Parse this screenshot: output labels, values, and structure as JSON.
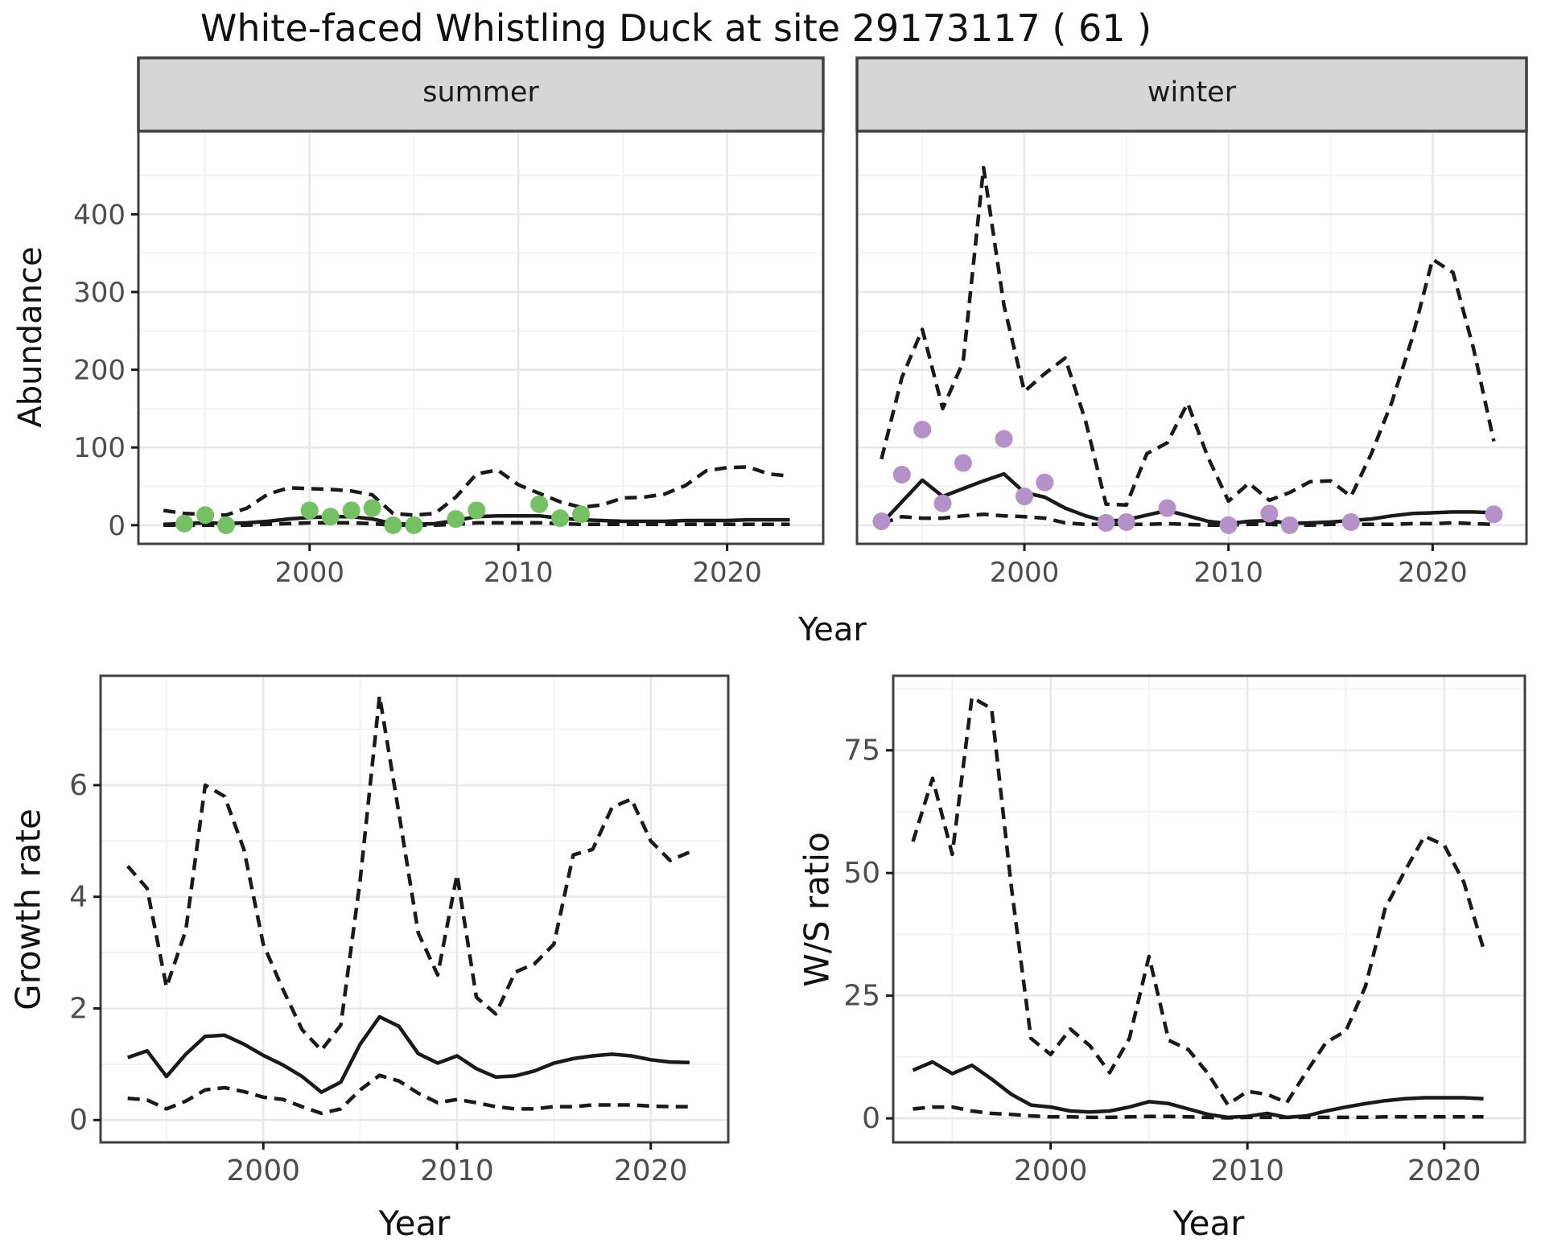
{
  "title": "White-faced Whistling Duck at site 29173117 ( 61 )",
  "colors": {
    "summer_points": "#74c163",
    "winter_points": "#b491c8",
    "line": "#1a1a1a",
    "strip_bg": "#d6d6d6",
    "panel_border": "#404040",
    "grid_major": "#e8e8e8",
    "grid_minor": "#f3f3f3",
    "tick_text": "#4d4d4d"
  },
  "chart_data": [
    {
      "type": "line",
      "id": "summer",
      "facet": "summer",
      "xlabel": "Year",
      "ylabel": "Abundance",
      "xlim": [
        1991.8,
        2024.6
      ],
      "ylim": [
        -24,
        507
      ],
      "xticks": [
        2000,
        2010,
        2020
      ],
      "xminor": [
        1995,
        2005,
        2015
      ],
      "yticks": [
        0,
        100,
        200,
        300,
        400
      ],
      "yminor": [
        50,
        150,
        250,
        350,
        450
      ],
      "grid": true,
      "legend": "none",
      "series": [
        {
          "name": "upper-ci",
          "style": "dashed",
          "x": [
            1993,
            1994,
            1995,
            1996,
            1997,
            1998,
            1999,
            2000,
            2001,
            2002,
            2003,
            2004,
            2005,
            2006,
            2007,
            2008,
            2009,
            2010,
            2011,
            2012,
            2013,
            2014,
            2015,
            2016,
            2017,
            2018,
            2019,
            2020,
            2021,
            2022,
            2023
          ],
          "y": [
            19,
            15,
            14,
            13,
            22,
            40,
            48,
            47,
            46,
            44,
            39,
            15,
            13,
            15,
            36,
            66,
            71,
            52,
            41,
            30,
            23,
            26,
            35,
            36,
            40,
            51,
            70,
            74,
            75,
            66,
            63
          ]
        },
        {
          "name": "lower-ci",
          "style": "dashed",
          "x": [
            1993,
            1994,
            1995,
            1996,
            1997,
            1998,
            1999,
            2000,
            2001,
            2002,
            2003,
            2004,
            2005,
            2006,
            2007,
            2008,
            2009,
            2010,
            2011,
            2012,
            2013,
            2014,
            2015,
            2016,
            2017,
            2018,
            2019,
            2020,
            2021,
            2022,
            2023
          ],
          "y": [
            0,
            0,
            0,
            0,
            0,
            1,
            2,
            3,
            3,
            3,
            2,
            0,
            0,
            0,
            1,
            3,
            3,
            3,
            3,
            2,
            1,
            1,
            1,
            1,
            1,
            1,
            1,
            1,
            1,
            1,
            1
          ]
        },
        {
          "name": "mean",
          "style": "solid",
          "x": [
            1993,
            1994,
            1995,
            1996,
            1997,
            1998,
            1999,
            2000,
            2001,
            2002,
            2003,
            2004,
            2005,
            2006,
            2007,
            2008,
            2009,
            2010,
            2011,
            2012,
            2013,
            2014,
            2015,
            2016,
            2017,
            2018,
            2019,
            2020,
            2021,
            2022,
            2023
          ],
          "y": [
            1,
            2,
            3,
            2,
            3,
            5,
            8,
            10,
            11,
            11,
            8,
            2,
            1,
            2,
            6,
            11,
            12,
            12,
            12,
            9,
            7,
            6,
            5,
            5,
            5,
            6,
            6,
            6,
            7,
            7,
            7
          ]
        },
        {
          "name": "observations",
          "style": "points",
          "color": "#74c163",
          "x": [
            1994,
            1995,
            1996,
            2000,
            2001,
            2002,
            2003,
            2004,
            2005,
            2007,
            2008,
            2011,
            2012,
            2013
          ],
          "y": [
            2,
            13,
            0,
            19,
            11,
            19,
            22,
            0,
            0,
            8,
            19,
            27,
            9,
            14
          ]
        }
      ]
    },
    {
      "type": "line",
      "id": "winter",
      "facet": "winter",
      "xlabel": "Year",
      "ylabel": "Abundance",
      "xlim": [
        1991.8,
        2024.6
      ],
      "ylim": [
        -24,
        507
      ],
      "xticks": [
        2000,
        2010,
        2020
      ],
      "xminor": [
        1995,
        2005,
        2015
      ],
      "yticks": [
        0,
        100,
        200,
        300,
        400
      ],
      "yminor": [
        50,
        150,
        250,
        350,
        450
      ],
      "grid": true,
      "legend": "none",
      "series": [
        {
          "name": "upper-ci",
          "style": "dashed",
          "x": [
            1993,
            1994,
            1995,
            1996,
            1997,
            1998,
            1999,
            2000,
            2001,
            2002,
            2003,
            2004,
            2005,
            2006,
            2007,
            2008,
            2009,
            2010,
            2011,
            2012,
            2013,
            2014,
            2015,
            2016,
            2017,
            2018,
            2019,
            2020,
            2021,
            2022,
            2023
          ],
          "y": [
            85,
            190,
            252,
            150,
            210,
            460,
            283,
            172,
            195,
            215,
            134,
            27,
            26,
            92,
            106,
            157,
            87,
            31,
            54,
            32,
            42,
            56,
            57,
            37,
            92,
            158,
            241,
            342,
            325,
            228,
            108
          ]
        },
        {
          "name": "lower-ci",
          "style": "dashed",
          "x": [
            1993,
            1994,
            1995,
            1996,
            1997,
            1998,
            1999,
            2000,
            2001,
            2002,
            2003,
            2004,
            2005,
            2006,
            2007,
            2008,
            2009,
            2010,
            2011,
            2012,
            2013,
            2014,
            2015,
            2016,
            2017,
            2018,
            2019,
            2020,
            2021,
            2022,
            2023
          ],
          "y": [
            2,
            11,
            9,
            9,
            12,
            14,
            12,
            11,
            9,
            3,
            1,
            1,
            1,
            1,
            2,
            1,
            0,
            0,
            1,
            1,
            0,
            0,
            1,
            1,
            1,
            1,
            2,
            2,
            3,
            2,
            1
          ]
        },
        {
          "name": "mean",
          "style": "solid",
          "x": [
            1993,
            1994,
            1995,
            1996,
            1997,
            1998,
            1999,
            2000,
            2001,
            2002,
            2003,
            2004,
            2005,
            2006,
            2007,
            2008,
            2009,
            2010,
            2011,
            2012,
            2013,
            2014,
            2015,
            2016,
            2017,
            2018,
            2019,
            2020,
            2021,
            2022,
            2023
          ],
          "y": [
            2,
            30,
            58,
            37,
            47,
            57,
            66,
            42,
            36,
            22,
            12,
            5,
            7,
            13,
            19,
            12,
            5,
            2,
            5,
            6,
            2,
            3,
            4,
            6,
            8,
            12,
            15,
            16,
            17,
            17,
            16
          ]
        },
        {
          "name": "observations",
          "style": "points",
          "color": "#b491c8",
          "x": [
            1993,
            1994,
            1995,
            1996,
            1997,
            1999,
            2000,
            2001,
            2004,
            2005,
            2007,
            2010,
            2012,
            2013,
            2016,
            2023
          ],
          "y": [
            5,
            65,
            123,
            28,
            80,
            111,
            37,
            55,
            3,
            4,
            22,
            0,
            15,
            0,
            4,
            14
          ]
        }
      ]
    },
    {
      "type": "line",
      "id": "growth_rate",
      "facet": "",
      "xlabel": "Year",
      "ylabel": "Growth rate",
      "xlim": [
        1991.6,
        2024.0
      ],
      "ylim": [
        -0.4,
        7.96
      ],
      "xticks": [
        2000,
        2010,
        2020
      ],
      "xminor": [
        1995,
        2005,
        2015
      ],
      "yticks": [
        0,
        2,
        4,
        6
      ],
      "yminor": [
        1,
        3,
        5,
        7
      ],
      "grid": true,
      "legend": "none",
      "series": [
        {
          "name": "upper-ci",
          "style": "dashed",
          "x": [
            1993,
            1994,
            1995,
            1996,
            1997,
            1998,
            1999,
            2000,
            2001,
            2002,
            2003,
            2004,
            2005,
            2006,
            2007,
            2008,
            2009,
            2010,
            2011,
            2012,
            2013,
            2014,
            2015,
            2016,
            2017,
            2018,
            2019,
            2020,
            2021,
            2022
          ],
          "y": [
            4.55,
            4.15,
            2.38,
            3.4,
            6.0,
            5.8,
            4.85,
            3.15,
            2.35,
            1.62,
            1.25,
            1.7,
            4.3,
            7.6,
            5.5,
            3.35,
            2.6,
            4.4,
            2.2,
            1.9,
            2.65,
            2.8,
            3.15,
            4.75,
            4.85,
            5.6,
            5.75,
            5.0,
            4.65,
            4.8
          ]
        },
        {
          "name": "lower-ci",
          "style": "dashed",
          "x": [
            1993,
            1994,
            1995,
            1996,
            1997,
            1998,
            1999,
            2000,
            2001,
            2002,
            2003,
            2004,
            2005,
            2006,
            2007,
            2008,
            2009,
            2010,
            2011,
            2012,
            2013,
            2014,
            2015,
            2016,
            2017,
            2018,
            2019,
            2020,
            2021,
            2022
          ],
          "y": [
            0.39,
            0.36,
            0.2,
            0.34,
            0.54,
            0.58,
            0.51,
            0.41,
            0.37,
            0.24,
            0.12,
            0.2,
            0.54,
            0.8,
            0.7,
            0.48,
            0.31,
            0.37,
            0.31,
            0.24,
            0.2,
            0.2,
            0.24,
            0.24,
            0.27,
            0.27,
            0.27,
            0.25,
            0.24,
            0.24
          ]
        },
        {
          "name": "mean",
          "style": "solid",
          "x": [
            1993,
            1994,
            1995,
            1996,
            1997,
            1998,
            1999,
            2000,
            2001,
            2002,
            2003,
            2004,
            2005,
            2006,
            2007,
            2008,
            2009,
            2010,
            2011,
            2012,
            2013,
            2014,
            2015,
            2016,
            2017,
            2018,
            2019,
            2020,
            2021,
            2022
          ],
          "y": [
            1.12,
            1.24,
            0.78,
            1.18,
            1.5,
            1.52,
            1.36,
            1.16,
            0.99,
            0.78,
            0.5,
            0.68,
            1.36,
            1.85,
            1.68,
            1.19,
            1.02,
            1.15,
            0.92,
            0.77,
            0.79,
            0.88,
            1.02,
            1.1,
            1.15,
            1.18,
            1.15,
            1.08,
            1.04,
            1.03
          ]
        }
      ]
    },
    {
      "type": "line",
      "id": "ws_ratio",
      "facet": "",
      "xlabel": "Year",
      "ylabel": "W/S ratio",
      "xlim": [
        1992.0,
        2024.1
      ],
      "ylim": [
        -4.9,
        90.2
      ],
      "xticks": [
        2000,
        2010,
        2020
      ],
      "xminor": [
        1995,
        2005,
        2015
      ],
      "yticks": [
        0,
        25,
        50,
        75
      ],
      "yminor": [
        12.5,
        37.5,
        62.5,
        87.5
      ],
      "grid": true,
      "legend": "none",
      "series": [
        {
          "name": "upper-ci",
          "style": "dashed",
          "x": [
            1993,
            1994,
            1995,
            1996,
            1997,
            1998,
            1999,
            2000,
            2001,
            2002,
            2003,
            2004,
            2005,
            2006,
            2007,
            2008,
            2009,
            2010,
            2011,
            2012,
            2013,
            2014,
            2015,
            2016,
            2017,
            2018,
            2019,
            2020,
            2021,
            2022
          ],
          "y": [
            56.4,
            69.3,
            53.8,
            85.8,
            83.5,
            47.3,
            16.3,
            13.0,
            18.2,
            14.8,
            9.3,
            16.3,
            33.0,
            15.9,
            14.0,
            9.1,
            2.8,
            5.5,
            4.9,
            3.2,
            9.5,
            15.5,
            17.8,
            26.9,
            42.8,
            50.4,
            57.5,
            55.7,
            48.1,
            34.5
          ]
        },
        {
          "name": "lower-ci",
          "style": "dashed",
          "x": [
            1993,
            1994,
            1995,
            1996,
            1997,
            1998,
            1999,
            2000,
            2001,
            2002,
            2003,
            2004,
            2005,
            2006,
            2007,
            2008,
            2009,
            2010,
            2011,
            2012,
            2013,
            2014,
            2015,
            2016,
            2017,
            2018,
            2019,
            2020,
            2021,
            2022
          ],
          "y": [
            1.9,
            2.3,
            2.3,
            1.5,
            1.0,
            0.8,
            0.5,
            0.3,
            0.3,
            0.2,
            0.2,
            0.3,
            0.4,
            0.4,
            0.3,
            0.2,
            0.1,
            0.2,
            0.2,
            0.2,
            0.2,
            0.2,
            0.2,
            0.2,
            0.3,
            0.3,
            0.3,
            0.3,
            0.3,
            0.3
          ]
        },
        {
          "name": "mean",
          "style": "solid",
          "x": [
            1993,
            1994,
            1995,
            1996,
            1997,
            1998,
            1999,
            2000,
            2001,
            2002,
            2003,
            2004,
            2005,
            2006,
            2007,
            2008,
            2009,
            2010,
            2011,
            2012,
            2013,
            2014,
            2015,
            2016,
            2017,
            2018,
            2019,
            2020,
            2021,
            2022
          ],
          "y": [
            9.8,
            11.5,
            9.1,
            10.8,
            8.0,
            4.9,
            2.7,
            2.3,
            1.5,
            1.3,
            1.5,
            2.3,
            3.4,
            3.0,
            1.9,
            0.8,
            0.2,
            0.4,
            1.0,
            0.2,
            0.5,
            1.5,
            2.3,
            3.0,
            3.6,
            4.0,
            4.2,
            4.2,
            4.2,
            4.0
          ]
        }
      ]
    }
  ]
}
